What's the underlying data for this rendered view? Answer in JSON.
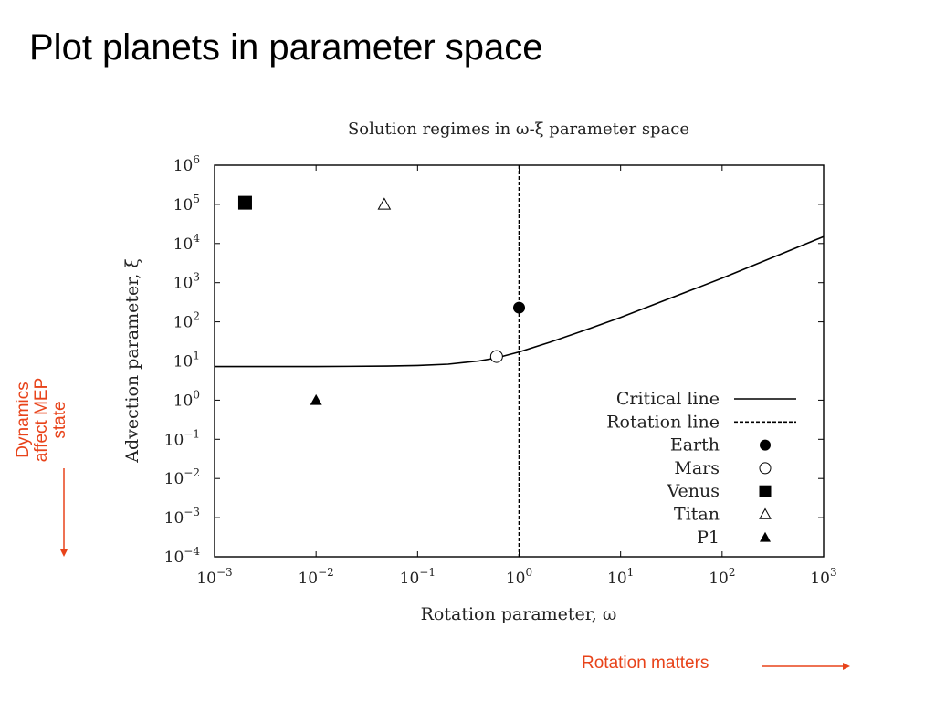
{
  "slide": {
    "title": "Plot planets in parameter space",
    "side_annotation": [
      "Dynamics",
      "affect MEP",
      "state"
    ],
    "bottom_annotation": "Rotation matters",
    "annotation_color": "#e8431a"
  },
  "chart_data": {
    "type": "scatter",
    "title": "Solution regimes in ω-ξ parameter space",
    "xlabel": "Rotation parameter, ω",
    "ylabel": "Advection parameter, ξ",
    "xscale": "log",
    "yscale": "log",
    "xlim": [
      0.001,
      1000
    ],
    "ylim": [
      0.0001,
      1000000
    ],
    "x_ticks": [
      {
        "value": 0.001,
        "base": "10",
        "exp": "−3"
      },
      {
        "value": 0.01,
        "base": "10",
        "exp": "−2"
      },
      {
        "value": 0.1,
        "base": "10",
        "exp": "−1"
      },
      {
        "value": 1,
        "base": "10",
        "exp": "0"
      },
      {
        "value": 10,
        "base": "10",
        "exp": "1"
      },
      {
        "value": 100,
        "base": "10",
        "exp": "2"
      },
      {
        "value": 1000,
        "base": "10",
        "exp": "3"
      }
    ],
    "y_ticks": [
      {
        "value": 0.0001,
        "base": "10",
        "exp": "−4"
      },
      {
        "value": 0.001,
        "base": "10",
        "exp": "−3"
      },
      {
        "value": 0.01,
        "base": "10",
        "exp": "−2"
      },
      {
        "value": 0.1,
        "base": "10",
        "exp": "−1"
      },
      {
        "value": 1,
        "base": "10",
        "exp": "0"
      },
      {
        "value": 10,
        "base": "10",
        "exp": "1"
      },
      {
        "value": 100,
        "base": "10",
        "exp": "2"
      },
      {
        "value": 1000,
        "base": "10",
        "exp": "3"
      },
      {
        "value": 10000,
        "base": "10",
        "exp": "4"
      },
      {
        "value": 100000,
        "base": "10",
        "exp": "5"
      },
      {
        "value": 1000000,
        "base": "10",
        "exp": "6"
      }
    ],
    "grid": false,
    "legend_position": "bottom-right",
    "critical_line": {
      "name": "Critical line",
      "points": [
        [
          0.001,
          7.2
        ],
        [
          0.01,
          7.2
        ],
        [
          0.05,
          7.4
        ],
        [
          0.1,
          7.7
        ],
        [
          0.2,
          8.3
        ],
        [
          0.4,
          10.0
        ],
        [
          0.6,
          12.0
        ],
        [
          1.0,
          17.0
        ],
        [
          2.0,
          30.0
        ],
        [
          5.0,
          68.0
        ],
        [
          10.0,
          130.0
        ],
        [
          100.0,
          1300.0
        ],
        [
          1000.0,
          15000.0
        ]
      ]
    },
    "rotation_line": {
      "name": "Rotation line",
      "x": 1.0
    },
    "series": [
      {
        "name": "Earth",
        "marker": "filled-circle",
        "x": 1.0,
        "y": 230
      },
      {
        "name": "Mars",
        "marker": "open-circle",
        "x": 0.6,
        "y": 13
      },
      {
        "name": "Venus",
        "marker": "filled-square",
        "x": 0.002,
        "y": 110000
      },
      {
        "name": "Titan",
        "marker": "open-triangle",
        "x": 0.047,
        "y": 100000
      },
      {
        "name": "P1",
        "marker": "filled-triangle",
        "x": 0.01,
        "y": 1.0
      }
    ],
    "legend_entries": [
      {
        "label": "Critical line",
        "symbol": "solid-line"
      },
      {
        "label": "Rotation line",
        "symbol": "dashed-line"
      },
      {
        "label": "Earth",
        "symbol": "filled-circle"
      },
      {
        "label": "Mars",
        "symbol": "open-circle"
      },
      {
        "label": "Venus",
        "symbol": "filled-square"
      },
      {
        "label": "Titan",
        "symbol": "open-triangle"
      },
      {
        "label": "P1",
        "symbol": "filled-triangle"
      }
    ]
  }
}
